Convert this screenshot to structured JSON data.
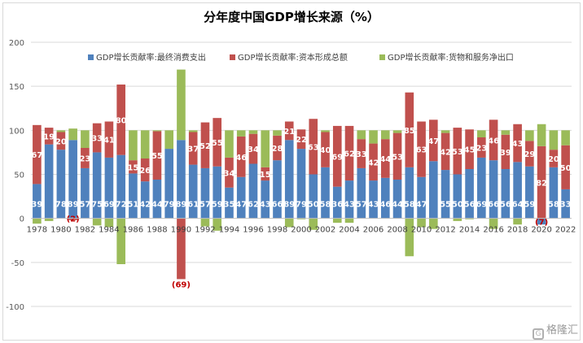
{
  "chart_data": {
    "type": "bar",
    "stacked": true,
    "title": "分年度中国GDP增长来源（%）",
    "ylim": [
      -100,
      200
    ],
    "yticks": [
      -100,
      -50,
      0,
      50,
      100,
      150,
      200
    ],
    "grid": true,
    "legend_position": "top",
    "categories": [
      1978,
      1979,
      1980,
      1981,
      1982,
      1983,
      1984,
      1985,
      1986,
      1987,
      1988,
      1989,
      1990,
      1991,
      1992,
      1993,
      1994,
      1995,
      1996,
      1997,
      1998,
      1999,
      2000,
      2001,
      2002,
      2003,
      2004,
      2005,
      2006,
      2007,
      2008,
      2009,
      2010,
      2011,
      2012,
      2013,
      2014,
      2015,
      2016,
      2017,
      2018,
      2019,
      2020,
      2021,
      2022
    ],
    "xtick_labels": [
      "1978",
      "1980",
      "1982",
      "1984",
      "1986",
      "1988",
      "1990",
      "1992",
      "1994",
      "1996",
      "1998",
      "2000",
      "2002",
      "2004",
      "2006",
      "2008",
      "2010",
      "2012",
      "2014",
      "2016",
      "2018",
      "2020",
      "2022"
    ],
    "series": [
      {
        "name": "GDP增长贡献率:最终消费支出",
        "color": "#4f81bd",
        "values": [
          39,
          84,
          78,
          89,
          57,
          75,
          69,
          72,
          51,
          42,
          44,
          79,
          89,
          61,
          57,
          59,
          35,
          47,
          62,
          43,
          66,
          89,
          79,
          50,
          58,
          36,
          43,
          57,
          43,
          46,
          44,
          58,
          47,
          65,
          55,
          50,
          56,
          69,
          66,
          56,
          64,
          59,
          -7,
          58,
          33
        ],
        "labels": [
          "39",
          "",
          "78",
          "89",
          "57",
          "75",
          "69",
          "72",
          "51",
          "42",
          "44",
          "79",
          "89",
          "61",
          "57",
          "59",
          "35",
          "47",
          "62",
          "43",
          "66",
          "89",
          "79",
          "50",
          "58",
          "36",
          "43",
          "57",
          "43",
          "46",
          "44",
          "58",
          "47",
          "",
          "55",
          "50",
          "56",
          "69",
          "66",
          "56",
          "64",
          "59",
          "(7)",
          "58",
          "33"
        ]
      },
      {
        "name": "GDP增长贡献率:资本形成总额",
        "color": "#c0504d",
        "values": [
          67,
          19,
          20,
          -2,
          23,
          33,
          41,
          80,
          15,
          26,
          55,
          0,
          -69,
          37,
          52,
          55,
          34,
          46,
          34,
          15,
          28,
          21,
          22,
          63,
          40,
          69,
          62,
          33,
          42,
          44,
          53,
          85,
          63,
          47,
          42,
          53,
          45,
          23,
          46,
          39,
          43,
          29,
          82,
          20,
          50
        ],
        "labels": [
          "67",
          "19",
          "20",
          "(2)",
          "23",
          "33",
          "41",
          "80",
          "15",
          "26",
          "55",
          "0",
          "(69)",
          "37",
          "52",
          "55",
          "34",
          "46",
          "34",
          "15",
          "28",
          "21",
          "22",
          "63",
          "40",
          "69",
          "62",
          "33",
          "42",
          "44",
          "53",
          "85",
          "63",
          "47",
          "42",
          "53",
          "45",
          "23",
          "46",
          "39",
          "43",
          "29",
          "82",
          "20",
          "50"
        ]
      },
      {
        "name": "GDP增长贡献率:货物和服务净出口",
        "color": "#9bbb59",
        "values": [
          -6,
          -3,
          2,
          13,
          20,
          -8,
          -10,
          -52,
          34,
          32,
          1,
          21,
          80,
          2,
          -9,
          -14,
          31,
          7,
          4,
          42,
          6,
          -10,
          -1,
          -13,
          2,
          -5,
          -5,
          10,
          15,
          10,
          3,
          -43,
          -10,
          -12,
          3,
          -3,
          -1,
          8,
          -12,
          5,
          -7,
          12,
          25,
          22,
          17
        ],
        "labels": []
      }
    ]
  },
  "watermark": {
    "text": "格隆汇",
    "icon": "gelonghui-logo-icon"
  }
}
